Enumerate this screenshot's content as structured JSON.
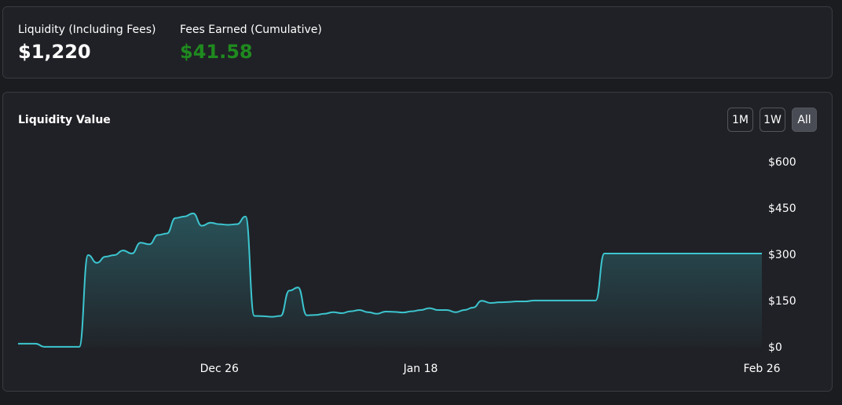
{
  "stats": [
    {
      "label": "Liquidity (Including Fees)",
      "value": "$1,220"
    },
    {
      "label": "Fees Earned (Cumulative)",
      "value": "$41.58"
    }
  ],
  "controls": [
    "1M",
    "1W",
    "All"
  ],
  "chart_data": {
    "type": "area",
    "title": "Liquidity Value",
    "color": "#3cc5cf",
    "categories": [
      null,
      null,
      null,
      null,
      null,
      null,
      null,
      null,
      null,
      null,
      null,
      null,
      null,
      null,
      null,
      null,
      null,
      null,
      null,
      null,
      null,
      null,
      null,
      "Dec 26",
      null,
      null,
      null,
      null,
      null,
      null,
      null,
      null,
      null,
      null,
      null,
      null,
      null,
      null,
      null,
      null,
      null,
      null,
      null,
      null,
      null,
      null,
      "Jan 18",
      null,
      null,
      null,
      null,
      null,
      null,
      null,
      null,
      null,
      null,
      null,
      null,
      null,
      null,
      null,
      null,
      null,
      null,
      null,
      null,
      null,
      null,
      null,
      null,
      null,
      null,
      null,
      null,
      null,
      null,
      null,
      null,
      null,
      null,
      null,
      null,
      null,
      null,
      "Feb 26"
    ],
    "values": [
      13,
      13,
      13,
      3,
      3,
      3,
      3,
      3,
      300,
      275,
      295,
      300,
      315,
      305,
      340,
      335,
      365,
      370,
      420,
      425,
      435,
      395,
      405,
      400,
      398,
      400,
      425,
      103,
      102,
      100,
      103,
      185,
      195,
      105,
      106,
      110,
      115,
      112,
      118,
      122,
      115,
      110,
      117,
      116,
      114,
      118,
      122,
      128,
      122,
      122,
      115,
      122,
      130,
      152,
      145,
      147,
      148,
      150,
      150,
      153,
      153,
      153,
      153,
      153,
      153,
      153,
      153,
      305,
      305,
      305,
      305,
      305,
      305,
      305,
      305,
      305,
      305,
      305,
      305,
      305,
      305,
      305,
      305,
      305,
      305,
      305
    ],
    "ylim": [
      0,
      600
    ],
    "yticks": [
      {
        "value": 0,
        "label": "$0"
      },
      {
        "value": 150,
        "label": "$150"
      },
      {
        "value": 300,
        "label": "$300"
      },
      {
        "value": 450,
        "label": "$450"
      },
      {
        "value": 600,
        "label": "$600"
      }
    ],
    "grid": false
  }
}
